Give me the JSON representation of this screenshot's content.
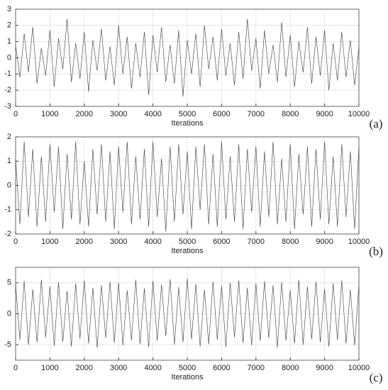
{
  "chart_data": [
    {
      "type": "line",
      "panel_label": "(a)",
      "x_label": "Iterations",
      "x": [
        0,
        125,
        250,
        375,
        500,
        625,
        750,
        875,
        1000,
        1125,
        1250,
        1375,
        1500,
        1625,
        1750,
        1875,
        2000,
        2125,
        2250,
        2375,
        2500,
        2625,
        2750,
        2875,
        3000,
        3125,
        3250,
        3375,
        3500,
        3625,
        3750,
        3875,
        4000,
        4125,
        4250,
        4375,
        4500,
        4625,
        4750,
        4875,
        5000,
        5125,
        5250,
        5375,
        5500,
        5625,
        5750,
        5875,
        6000,
        6125,
        6250,
        6375,
        6500,
        6625,
        6750,
        6875,
        7000,
        7125,
        7250,
        7375,
        7500,
        7625,
        7750,
        7875,
        8000,
        8125,
        8250,
        8375,
        8500,
        8625,
        8750,
        8875,
        9000,
        9125,
        9250,
        9375,
        9500,
        9625,
        9750,
        9875,
        10000
      ],
      "series": [
        {
          "color": "#3a3a3a",
          "values": [
            0.8,
            -1.2,
            1.5,
            -0.9,
            1.9,
            -1.6,
            0.6,
            -1.1,
            1.7,
            -1.8,
            1.2,
            -0.7,
            2.4,
            -1.5,
            0.9,
            -1.3,
            1.6,
            -2.1,
            1.1,
            -0.8,
            1.8,
            -1.4,
            0.7,
            -1.7,
            2.0,
            -1.0,
            1.3,
            -1.9,
            0.9,
            -1.2,
            1.6,
            -2.3,
            1.4,
            -0.9,
            1.9,
            -1.5,
            0.8,
            -1.6,
            1.7,
            -2.4,
            1.1,
            -1.0,
            1.5,
            -1.8,
            2.0,
            -0.7,
            1.3,
            -1.4,
            1.8,
            -1.1,
            0.9,
            -1.7,
            1.6,
            -1.3,
            2.4,
            -0.8,
            1.2,
            -1.9,
            1.7,
            -1.0,
            0.8,
            -1.5,
            2.2,
            -1.2,
            1.4,
            -1.8,
            1.0,
            -0.9,
            1.9,
            -1.6,
            1.3,
            -1.1,
            1.7,
            -2.0,
            0.9,
            -1.4,
            1.6,
            -1.2,
            1.1,
            -1.7,
            0.7
          ]
        }
      ],
      "xlim": [
        0,
        10000
      ],
      "xticks": [
        0,
        1000,
        2000,
        3000,
        4000,
        5000,
        6000,
        7000,
        8000,
        9000,
        10000
      ],
      "ylim": [
        -3,
        3
      ],
      "yticks": [
        -3,
        -2,
        -1,
        0,
        1,
        2,
        3
      ],
      "grid": true
    },
    {
      "type": "line",
      "panel_label": "(b)",
      "x_label": "Iterations",
      "x": [
        0,
        125,
        250,
        375,
        500,
        625,
        750,
        875,
        1000,
        1125,
        1250,
        1375,
        1500,
        1625,
        1750,
        1875,
        2000,
        2125,
        2250,
        2375,
        2500,
        2625,
        2750,
        2875,
        3000,
        3125,
        3250,
        3375,
        3500,
        3625,
        3750,
        3875,
        4000,
        4125,
        4250,
        4375,
        4500,
        4625,
        4750,
        4875,
        5000,
        5125,
        5250,
        5375,
        5500,
        5625,
        5750,
        5875,
        6000,
        6125,
        6250,
        6375,
        6500,
        6625,
        6750,
        6875,
        7000,
        7125,
        7250,
        7375,
        7500,
        7625,
        7750,
        7875,
        8000,
        8125,
        8250,
        8375,
        8500,
        8625,
        8750,
        8875,
        9000,
        9125,
        9250,
        9375,
        9500,
        9625,
        9750,
        9875,
        10000
      ],
      "series": [
        {
          "color": "#3a3a3a",
          "values": [
            1.1,
            -1.6,
            1.8,
            -1.3,
            1.5,
            -1.7,
            1.2,
            -1.5,
            1.7,
            -1.1,
            1.6,
            -1.8,
            1.3,
            -1.4,
            1.8,
            -1.6,
            1.0,
            -1.7,
            1.5,
            -1.2,
            1.7,
            -1.5,
            1.4,
            -1.8,
            1.6,
            -1.1,
            1.8,
            -1.6,
            1.2,
            -1.4,
            1.5,
            -1.7,
            1.8,
            -1.3,
            1.1,
            -1.9,
            1.6,
            -1.5,
            1.7,
            -1.2,
            1.4,
            -1.8,
            1.6,
            -1.0,
            1.7,
            -1.6,
            1.3,
            -1.7,
            1.8,
            -1.4,
            1.2,
            -1.5,
            1.7,
            -1.8,
            1.5,
            -1.1,
            1.6,
            -1.7,
            1.4,
            -1.3,
            1.8,
            -1.6,
            1.1,
            -1.5,
            1.7,
            -1.8,
            1.3,
            -1.2,
            1.6,
            -1.7,
            1.5,
            -1.4,
            1.8,
            -1.6,
            1.2,
            -1.7,
            1.7,
            -1.3,
            1.4,
            -1.8,
            1.6
          ]
        }
      ],
      "xlim": [
        0,
        10000
      ],
      "xticks": [
        0,
        1000,
        2000,
        3000,
        4000,
        5000,
        6000,
        7000,
        8000,
        9000,
        10000
      ],
      "ylim": [
        -2,
        2
      ],
      "yticks": [
        -2,
        -1,
        0,
        1,
        2
      ],
      "grid": true
    },
    {
      "type": "line",
      "panel_label": "(c)",
      "x_label": "Iterations",
      "x": [
        0,
        125,
        250,
        375,
        500,
        625,
        750,
        875,
        1000,
        1125,
        1250,
        1375,
        1500,
        1625,
        1750,
        1875,
        2000,
        2125,
        2250,
        2375,
        2500,
        2625,
        2750,
        2875,
        3000,
        3125,
        3250,
        3375,
        3500,
        3625,
        3750,
        3875,
        4000,
        4125,
        4250,
        4375,
        4500,
        4625,
        4750,
        4875,
        5000,
        5125,
        5250,
        5375,
        5500,
        5625,
        5750,
        5875,
        6000,
        6125,
        6250,
        6375,
        6500,
        6625,
        6750,
        6875,
        7000,
        7125,
        7250,
        7375,
        7500,
        7625,
        7750,
        7875,
        8000,
        8125,
        8250,
        8375,
        8500,
        8625,
        8750,
        8875,
        9000,
        9125,
        9250,
        9375,
        9500,
        9625,
        9750,
        9875,
        10000
      ],
      "series": [
        {
          "color": "#3a3a3a",
          "values": [
            4.8,
            -4.2,
            5.3,
            -5.0,
            3.9,
            -4.6,
            5.5,
            -3.8,
            4.4,
            -5.2,
            5.1,
            -4.5,
            3.7,
            -5.3,
            4.9,
            -4.0,
            5.4,
            -4.8,
            4.2,
            -5.5,
            4.6,
            -3.9,
            5.2,
            -4.7,
            5.0,
            -5.1,
            3.8,
            -4.3,
            5.5,
            -4.9,
            4.1,
            -5.4,
            5.3,
            -4.4,
            4.7,
            -3.6,
            5.6,
            -5.0,
            4.3,
            -4.6,
            5.7,
            -4.1,
            4.8,
            -5.3,
            3.9,
            -4.9,
            5.2,
            -4.2,
            4.5,
            -5.4,
            5.0,
            -3.8,
            5.4,
            -4.7,
            4.2,
            -5.1,
            4.9,
            -4.4,
            5.3,
            -3.9,
            4.6,
            -5.5,
            5.1,
            -4.3,
            3.8,
            -4.8,
            5.5,
            -5.0,
            4.4,
            -4.1,
            5.2,
            -4.6,
            4.0,
            -5.3,
            4.9,
            -4.2,
            5.4,
            -4.8,
            3.9,
            -5.1,
            4.7
          ]
        }
      ],
      "xlim": [
        0,
        10000
      ],
      "xticks": [
        0,
        1000,
        2000,
        3000,
        4000,
        5000,
        6000,
        7000,
        8000,
        9000,
        10000
      ],
      "ylim": [
        -7.5,
        7.5
      ],
      "yticks": [
        -5,
        0,
        5
      ],
      "grid": true
    }
  ]
}
